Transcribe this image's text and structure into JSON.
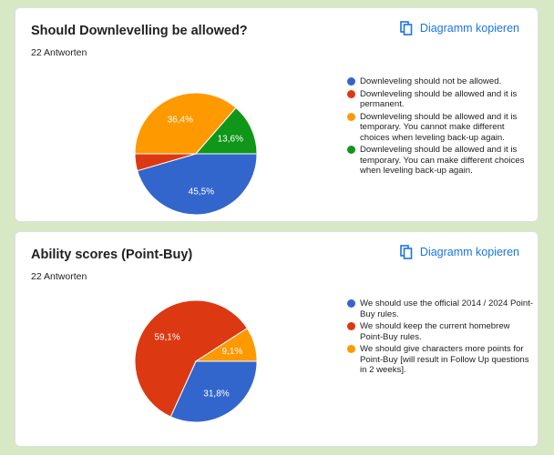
{
  "chart_data": [
    {
      "type": "pie",
      "title": "Should Downlevelling be allowed?",
      "responses": "22 Antworten",
      "copy_label": "Diagramm kopieren",
      "start_angle_deg": 90,
      "slices": [
        {
          "label": "Downleveling should not be allowed.",
          "value": 45.5,
          "value_label": "45,5%",
          "color": "#3366cc"
        },
        {
          "label": "Downleveling should be allowed and it is permanent.",
          "value": 4.5,
          "value_label": "",
          "color": "#dc3912"
        },
        {
          "label": "Downleveling should be allowed and it is temporary. You cannot make different choices when leveling back-up again.",
          "value": 36.4,
          "value_label": "36,4%",
          "color": "#ff9900"
        },
        {
          "label": "Downleveling should be allowed and it is temporary. You can make different choices when leveling back-up again.",
          "value": 13.6,
          "value_label": "13,6%",
          "color": "#109618"
        }
      ]
    },
    {
      "type": "pie",
      "title": "Ability scores (Point-Buy)",
      "responses": "22 Antworten",
      "copy_label": "Diagramm kopieren",
      "start_angle_deg": 90,
      "slices": [
        {
          "label": "We should use the official 2014 / 2024 Point-Buy rules.",
          "value": 31.8,
          "value_label": "31,8%",
          "color": "#3366cc"
        },
        {
          "label": "We should keep the current homebrew Point-Buy rules.",
          "value": 59.1,
          "value_label": "59,1%",
          "color": "#dc3912"
        },
        {
          "label": "We should give characters more points for Point-Buy [will result in Follow Up questions in 2 weeks].",
          "value": 9.1,
          "value_label": "9,1%",
          "color": "#ff9900"
        }
      ]
    }
  ]
}
